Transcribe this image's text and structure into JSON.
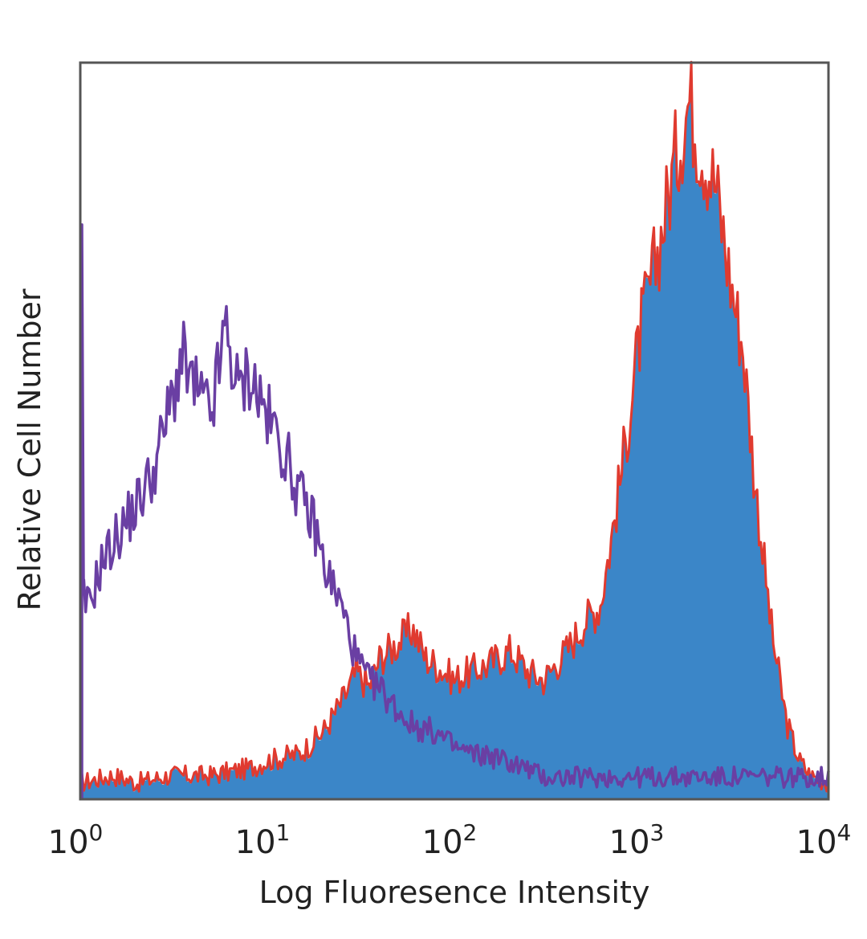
{
  "chart_data": {
    "type": "area",
    "title": "",
    "xlabel": "Log Fluoresence Intensity",
    "ylabel": "Relative Cell Number",
    "xscale": "log",
    "xlim": [
      1,
      10000
    ],
    "ylim": [
      0,
      100
    ],
    "grid": false,
    "legend": "none",
    "x_ticks": [
      {
        "base": "10",
        "exp": "0"
      },
      {
        "base": "10",
        "exp": "1"
      },
      {
        "base": "10",
        "exp": "2"
      },
      {
        "base": "10",
        "exp": "3"
      },
      {
        "base": "10",
        "exp": "4"
      }
    ],
    "series": [
      {
        "style": "filled",
        "fill_color": "#3b86c8",
        "outline_color": "#e03a2f",
        "x": [
          1,
          1.5,
          2,
          3,
          5,
          8,
          10,
          15,
          20,
          25,
          30,
          35,
          40,
          50,
          60,
          70,
          80,
          100,
          120,
          150,
          200,
          250,
          300,
          400,
          500,
          600,
          700,
          800,
          1000,
          1200,
          1500,
          1800,
          2000,
          2500,
          3000,
          3500,
          4000,
          5000,
          6000,
          7000,
          8000,
          10000
        ],
        "values": [
          2,
          3,
          2,
          3,
          3,
          4,
          5,
          6,
          9,
          13,
          17,
          15,
          19,
          21,
          23,
          19,
          18,
          16,
          17,
          18,
          20,
          17,
          16,
          20,
          24,
          26,
          36,
          46,
          64,
          73,
          86,
          95,
          90,
          83,
          70,
          61,
          44,
          22,
          10,
          5,
          3,
          2
        ]
      },
      {
        "style": "line",
        "line_color": "#6a3fa3",
        "x": [
          1,
          1.1,
          1.3,
          1.6,
          2,
          2.5,
          3,
          3.5,
          4,
          5,
          6,
          7,
          8,
          10,
          12,
          15,
          18,
          20,
          25,
          30,
          35,
          40,
          50,
          60,
          80,
          100,
          130,
          150,
          200,
          250,
          300,
          400,
          600,
          1000,
          3000,
          10000
        ],
        "values": [
          28,
          26,
          32,
          36,
          40,
          45,
          53,
          60,
          56,
          52,
          64,
          55,
          58,
          52,
          48,
          41,
          37,
          32,
          26,
          19,
          16,
          15,
          12,
          10,
          9,
          7,
          6,
          6,
          5,
          4,
          3,
          3,
          3,
          3,
          3,
          3
        ]
      }
    ]
  }
}
